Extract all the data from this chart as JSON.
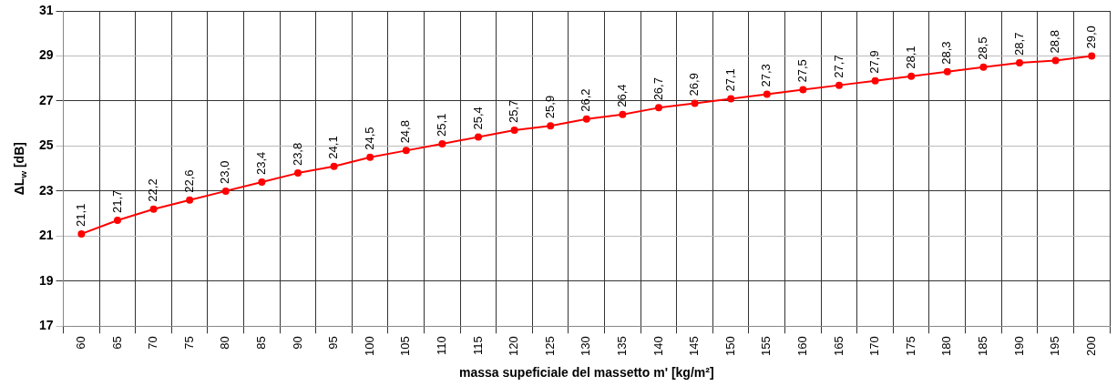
{
  "chart_data": {
    "type": "line",
    "xlabel": "massa supeficiale del massetto m' [kg/m²]",
    "ylabel": "ΔL$_{w}$ [dB]",
    "categories": [
      "60",
      "65",
      "70",
      "75",
      "80",
      "85",
      "90",
      "95",
      "100",
      "105",
      "110",
      "115",
      "120",
      "125",
      "130",
      "135",
      "140",
      "145",
      "150",
      "155",
      "160",
      "165",
      "170",
      "175",
      "180",
      "185",
      "190",
      "195",
      "200"
    ],
    "series": [
      {
        "color": "#ff0000",
        "values": [
          21.1,
          21.7,
          22.2,
          22.6,
          23.0,
          23.4,
          23.8,
          24.1,
          24.5,
          24.8,
          25.1,
          25.4,
          25.7,
          25.9,
          26.2,
          26.4,
          26.7,
          26.9,
          27.1,
          27.3,
          27.5,
          27.7,
          27.9,
          28.1,
          28.3,
          28.5,
          28.7,
          28.8,
          29.0
        ],
        "value_labels": [
          "21,1",
          "21,7",
          "22,2",
          "22,6",
          "23,0",
          "23,4",
          "23,8",
          "24,1",
          "24,5",
          "24,8",
          "25,1",
          "25,4",
          "25,7",
          "25,9",
          "26,2",
          "26,4",
          "26,7",
          "26,9",
          "27,1",
          "27,3",
          "27,5",
          "27,7",
          "27,9",
          "28,1",
          "28,3",
          "28,5",
          "28,7",
          "28,8",
          "29,0"
        ]
      }
    ],
    "ylim": [
      17,
      31
    ],
    "yticks": [
      17,
      19,
      21,
      23,
      25,
      27,
      29,
      31
    ],
    "grid": true,
    "legend": false,
    "marker": "circle",
    "line_style": "solid"
  }
}
